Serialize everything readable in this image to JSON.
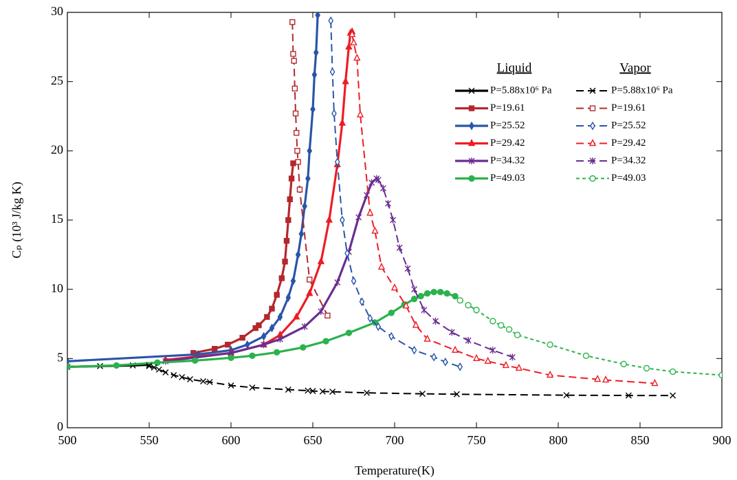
{
  "chart_data": {
    "type": "line",
    "x_label": "Temperature(K)",
    "y_label": "Cₚ (10³ J/kg K)",
    "xlim": [
      500,
      900
    ],
    "xticks": [
      500,
      550,
      600,
      650,
      700,
      750,
      800,
      850,
      900
    ],
    "ylim": [
      0,
      30
    ],
    "yticks": [
      0,
      5,
      10,
      15,
      20,
      25,
      30
    ],
    "legend_groups": [
      "Liquid",
      "Vapor"
    ],
    "series": [
      {
        "name": "P=5.88x10⁶ Pa",
        "group": 0,
        "color": "#000000",
        "marker": "x",
        "dashed": false,
        "x": [
          500,
          520,
          540,
          550
        ],
        "values": [
          4.4,
          4.45,
          4.5,
          4.55
        ]
      },
      {
        "name": "P=19.61",
        "group": 0,
        "color": "#b3282d",
        "marker": "square",
        "dashed": false,
        "x": [
          577,
          590,
          598,
          607,
          615,
          617,
          622,
          625,
          628,
          631,
          633,
          634,
          635,
          636,
          637,
          638
        ],
        "values": [
          5.4,
          5.7,
          6.0,
          6.5,
          7.2,
          7.4,
          8.0,
          8.6,
          9.6,
          10.8,
          12,
          13.5,
          15,
          16.5,
          18,
          19.1
        ]
      },
      {
        "name": "P=25.52",
        "group": 0,
        "color": "#2a55a8",
        "marker": "diamond",
        "dashed": false,
        "x": [
          500,
          580,
          600,
          610,
          620,
          625,
          630,
          635,
          638,
          641,
          643,
          645,
          647,
          648,
          650,
          651,
          652,
          653
        ],
        "values": [
          4.8,
          5.3,
          5.6,
          6.0,
          6.6,
          7.2,
          8.0,
          9.4,
          10.6,
          12.5,
          14,
          16,
          18,
          20,
          23,
          25.5,
          27.1,
          29.8
        ]
      },
      {
        "name": "P=29.42",
        "group": 0,
        "color": "#ee1c24",
        "marker": "triangle",
        "dashed": false,
        "x": [
          560,
          600,
          620,
          630,
          640,
          648,
          655,
          660,
          665,
          668,
          670,
          672,
          673,
          674
        ],
        "values": [
          4.9,
          5.4,
          6.0,
          6.7,
          8,
          9.7,
          12,
          15,
          19,
          22,
          25,
          27.5,
          28.5,
          28.6
        ]
      },
      {
        "name": "P=34.32",
        "group": 0,
        "color": "#6a2c91",
        "marker": "asterisk",
        "dashed": false,
        "x": [
          560,
          600,
          620,
          630,
          645,
          655,
          665,
          672,
          678,
          683,
          686,
          689
        ],
        "values": [
          4.8,
          5.4,
          6.0,
          6.4,
          7.3,
          8.4,
          10.5,
          12.7,
          15.2,
          16.8,
          17.7,
          18.0
        ]
      },
      {
        "name": "P=49.03",
        "group": 0,
        "color": "#2bb24c",
        "marker": "circle",
        "dashed": false,
        "x": [
          500,
          530,
          555,
          578,
          600,
          613,
          628,
          644,
          658,
          672,
          688,
          698,
          706,
          712,
          716,
          720,
          724,
          728,
          732,
          737
        ],
        "values": [
          4.4,
          4.5,
          4.7,
          4.85,
          5.05,
          5.2,
          5.45,
          5.8,
          6.25,
          6.85,
          7.6,
          8.3,
          8.9,
          9.3,
          9.5,
          9.7,
          9.8,
          9.8,
          9.7,
          9.5
        ]
      },
      {
        "name": "P=5.88x10⁶ Pa",
        "group": 1,
        "color": "#000000",
        "marker": "x",
        "dashed": true,
        "x": [
          550,
          553,
          556,
          560,
          565,
          570,
          575,
          583,
          587,
          600,
          613,
          635,
          647,
          650,
          656,
          662,
          683,
          717,
          738,
          805,
          843,
          870
        ],
        "values": [
          4.45,
          4.35,
          4.2,
          4.0,
          3.8,
          3.65,
          3.5,
          3.35,
          3.3,
          3.05,
          2.9,
          2.75,
          2.68,
          2.65,
          2.62,
          2.6,
          2.52,
          2.45,
          2.42,
          2.35,
          2.33,
          2.33
        ]
      },
      {
        "name": "P=19.61",
        "group": 1,
        "color": "#b3282d",
        "marker": "square",
        "dashed": true,
        "x": [
          637.5,
          638,
          638.5,
          639,
          639.5,
          640,
          640.5,
          641,
          642,
          648,
          659
        ],
        "values": [
          29.3,
          27,
          26.5,
          24.5,
          22.7,
          21.3,
          20,
          19.2,
          17.2,
          10.7,
          8.1
        ]
      },
      {
        "name": "P=25.52",
        "group": 1,
        "color": "#2a55a8",
        "marker": "diamond",
        "dashed": true,
        "x": [
          661,
          662,
          663,
          665,
          668,
          671,
          675,
          680,
          685,
          690,
          698,
          712,
          724,
          731,
          740
        ],
        "values": [
          29.4,
          25.7,
          22.7,
          19.2,
          15,
          12.6,
          10.6,
          9.1,
          7.9,
          7.3,
          6.6,
          5.6,
          5.1,
          4.75,
          4.4
        ]
      },
      {
        "name": "P=29.42",
        "group": 1,
        "color": "#ee1c24",
        "marker": "triangle",
        "dashed": true,
        "x": [
          674,
          675,
          677,
          679,
          685,
          688,
          692,
          700,
          707,
          713,
          720,
          737,
          750,
          757,
          768,
          776,
          795,
          824,
          829,
          859
        ],
        "values": [
          28.4,
          27.8,
          26.7,
          22.6,
          15.5,
          14.2,
          11.6,
          10.1,
          8.8,
          7.4,
          6.4,
          5.6,
          5.0,
          4.8,
          4.5,
          4.3,
          3.8,
          3.5,
          3.45,
          3.2
        ]
      },
      {
        "name": "P=34.32",
        "group": 1,
        "color": "#6a2c91",
        "marker": "asterisk",
        "dashed": true,
        "x": [
          690,
          693,
          696,
          699,
          703,
          708,
          712,
          718,
          725,
          735,
          745,
          760,
          772
        ],
        "values": [
          17.9,
          17.3,
          16.2,
          15.0,
          13.0,
          11.5,
          10.0,
          8.5,
          7.7,
          6.9,
          6.3,
          5.6,
          5.1
        ]
      },
      {
        "name": "P=49.03",
        "group": 1,
        "color": "#2bb24c",
        "marker": "circle",
        "dashed": true,
        "x": [
          740,
          745,
          750,
          760,
          765,
          770,
          775,
          795,
          817,
          840,
          854,
          870,
          900
        ],
        "values": [
          9.2,
          8.85,
          8.5,
          7.7,
          7.4,
          7.1,
          6.7,
          6.0,
          5.2,
          4.6,
          4.3,
          4.05,
          3.8
        ]
      }
    ]
  }
}
